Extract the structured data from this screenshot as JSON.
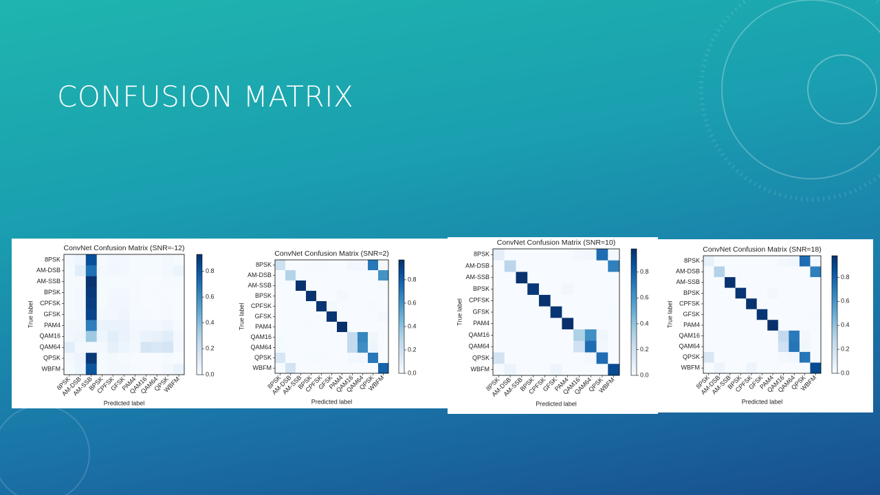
{
  "title": "CONFUSION MATRIX",
  "chart_data": [
    {
      "type": "heatmap",
      "title": "ConvNet Confusion Matrix (SNR=-12)",
      "xlabel": "Predicted label",
      "ylabel": "True label",
      "colormap": "Blues",
      "xcategories": [
        "8PSK",
        "AM-DSB",
        "AM-SSB",
        "BPSK",
        "CPFSK",
        "GFSK",
        "PAM4",
        "QAM16",
        "QAM64",
        "QPSK",
        "WBFM"
      ],
      "ycategories": [
        "8PSK",
        "AM-DSB",
        "AM-SSB",
        "BPSK",
        "CPFSK",
        "GFSK",
        "PAM4",
        "QAM16",
        "QAM64",
        "QPSK",
        "WBFM"
      ],
      "values": [
        [
          0.02,
          0.05,
          0.82,
          0.01,
          0.02,
          0.02,
          0.01,
          0.01,
          0.01,
          0.02,
          0.01
        ],
        [
          0.01,
          0.1,
          0.7,
          0.02,
          0.03,
          0.02,
          0.01,
          0.01,
          0.01,
          0.02,
          0.05
        ],
        [
          0.01,
          0.01,
          0.92,
          0.01,
          0.01,
          0.01,
          0.01,
          0,
          0,
          0.01,
          0.01
        ],
        [
          0.01,
          0.02,
          0.9,
          0.01,
          0.02,
          0.02,
          0.01,
          0,
          0.01,
          0,
          0
        ],
        [
          0.01,
          0.02,
          0.88,
          0.01,
          0.03,
          0.03,
          0.01,
          0,
          0,
          0.01,
          0
        ],
        [
          0.01,
          0.02,
          0.86,
          0.02,
          0.02,
          0.04,
          0.01,
          0.01,
          0,
          0.01,
          0
        ],
        [
          0.03,
          0.03,
          0.65,
          0.06,
          0.06,
          0.06,
          0.02,
          0.02,
          0.02,
          0.04,
          0.01
        ],
        [
          0.03,
          0.04,
          0.35,
          0.04,
          0.1,
          0.06,
          0.03,
          0.06,
          0.07,
          0.1,
          0.02
        ],
        [
          0.1,
          0.02,
          0.02,
          0.02,
          0.08,
          0.05,
          0.02,
          0.16,
          0.14,
          0.16,
          0.02
        ],
        [
          0.02,
          0.05,
          0.9,
          0.01,
          0.02,
          0.01,
          0,
          0,
          0,
          0.01,
          0
        ],
        [
          0.01,
          0.05,
          0.8,
          0.01,
          0.02,
          0.02,
          0.01,
          0,
          0,
          0.02,
          0.06
        ]
      ],
      "zlim": [
        0,
        0.93
      ],
      "zticks": [
        {
          "value": 0,
          "label": "0.0"
        },
        0.2,
        0.4,
        0.6,
        0.8
      ]
    },
    {
      "type": "heatmap",
      "title": "ConvNet Confusion Matrix (SNR=2)",
      "xlabel": "Predicted label",
      "ylabel": "True label",
      "colormap": "Blues",
      "xcategories": [
        "8PSK",
        "AM-DSB",
        "AM-SSB",
        "BPSK",
        "CPFSK",
        "GFSK",
        "PAM4",
        "QAM16",
        "QAM64",
        "QPSK",
        "WBFM"
      ],
      "ycategories": [
        "8PSK",
        "AM-DSB",
        "AM-SSB",
        "BPSK",
        "CPFSK",
        "GFSK",
        "PAM4",
        "QAM16",
        "QAM64",
        "QPSK",
        "WBFM"
      ],
      "values": [
        [
          0.2,
          0,
          0,
          0.01,
          0.01,
          0,
          0,
          0.03,
          0.02,
          0.7,
          0.02
        ],
        [
          0,
          0.3,
          0.01,
          0,
          0,
          0,
          0,
          0,
          0,
          0.01,
          0.6
        ],
        [
          0,
          0,
          0.96,
          0,
          0,
          0,
          0,
          0,
          0,
          0,
          0.01
        ],
        [
          0,
          0,
          0,
          0.96,
          0,
          0,
          0.02,
          0,
          0,
          0,
          0
        ],
        [
          0,
          0,
          0,
          0,
          0.95,
          0.02,
          0,
          0,
          0,
          0.01,
          0
        ],
        [
          0,
          0,
          0,
          0,
          0.01,
          0.95,
          0,
          0,
          0,
          0,
          0.02
        ],
        [
          0,
          0,
          0,
          0.01,
          0,
          0,
          0.97,
          0,
          0,
          0,
          0
        ],
        [
          0.01,
          0,
          0,
          0,
          0,
          0,
          0,
          0.25,
          0.65,
          0.04,
          0
        ],
        [
          0.01,
          0,
          0,
          0,
          0,
          0,
          0,
          0.25,
          0.62,
          0.05,
          0
        ],
        [
          0.15,
          0,
          0,
          0.01,
          0.01,
          0,
          0,
          0.02,
          0.03,
          0.7,
          0
        ],
        [
          0,
          0.18,
          0,
          0,
          0,
          0,
          0,
          0,
          0,
          0,
          0.78
        ]
      ],
      "zlim": [
        0,
        0.97
      ],
      "zticks": [
        {
          "value": 0,
          "label": "0.0"
        },
        0.2,
        0.4,
        0.6,
        0.8
      ]
    },
    {
      "type": "heatmap",
      "title": "ConvNet Confusion Matrix (SNR=10)",
      "xlabel": "Predicted label",
      "ylabel": "True label",
      "colormap": "Blues",
      "xcategories": [
        "8PSK",
        "AM-DSB",
        "AM-SSB",
        "BPSK",
        "CPFSK",
        "GFSK",
        "PAM4",
        "QAM16",
        "QAM64",
        "QPSK",
        "WBFM"
      ],
      "ycategories": [
        "8PSK",
        "AM-DSB",
        "AM-SSB",
        "BPSK",
        "CPFSK",
        "GFSK",
        "PAM4",
        "QAM16",
        "QAM64",
        "QPSK",
        "WBFM"
      ],
      "values": [
        [
          0.1,
          0,
          0,
          0,
          0,
          0,
          0,
          0.02,
          0.03,
          0.75,
          0.02
        ],
        [
          0,
          0.28,
          0,
          0,
          0,
          0,
          0,
          0,
          0,
          0,
          0.68
        ],
        [
          0,
          0,
          0.97,
          0,
          0,
          0,
          0,
          0,
          0,
          0,
          0
        ],
        [
          0,
          0,
          0,
          0.95,
          0,
          0,
          0.03,
          0,
          0,
          0,
          0
        ],
        [
          0,
          0,
          0,
          0,
          0.97,
          0,
          0,
          0,
          0,
          0,
          0
        ],
        [
          0,
          0,
          0,
          0,
          0,
          0.96,
          0,
          0,
          0,
          0,
          0.01
        ],
        [
          0,
          0,
          0,
          0,
          0,
          0,
          0.98,
          0,
          0,
          0,
          0
        ],
        [
          0,
          0,
          0,
          0,
          0,
          0,
          0,
          0.32,
          0.62,
          0.04,
          0
        ],
        [
          0,
          0,
          0,
          0,
          0,
          0,
          0,
          0.2,
          0.75,
          0.03,
          0
        ],
        [
          0.18,
          0,
          0,
          0,
          0,
          0,
          0,
          0,
          0.02,
          0.75,
          0
        ],
        [
          0,
          0.06,
          0,
          0,
          0,
          0.05,
          0,
          0,
          0,
          0,
          0.88
        ]
      ],
      "zlim": [
        0,
        0.98
      ],
      "zticks": [
        {
          "value": 0,
          "label": "0.0"
        },
        0.2,
        0.4,
        0.6,
        0.8
      ]
    },
    {
      "type": "heatmap",
      "title": "ConvNet Confusion Matrix (SNR=18)",
      "xlabel": "Predicted label",
      "ylabel": "True label",
      "colormap": "Blues",
      "xcategories": [
        "8PSK",
        "AM-DSB",
        "AM-SSB",
        "BPSK",
        "CPFSK",
        "GFSK",
        "PAM4",
        "QAM16",
        "QAM64",
        "QPSK",
        "WBFM"
      ],
      "ycategories": [
        "8PSK",
        "AM-DSB",
        "AM-SSB",
        "BPSK",
        "CPFSK",
        "GFSK",
        "PAM4",
        "QAM16",
        "QAM64",
        "QPSK",
        "WBFM"
      ],
      "values": [
        [
          0.08,
          0,
          0,
          0,
          0,
          0,
          0,
          0.02,
          0.03,
          0.75,
          0.02
        ],
        [
          0,
          0.3,
          0,
          0,
          0,
          0,
          0,
          0,
          0,
          0,
          0.68
        ],
        [
          0,
          0,
          0.97,
          0,
          0,
          0,
          0,
          0,
          0,
          0,
          0
        ],
        [
          0,
          0,
          0,
          0.96,
          0,
          0,
          0.02,
          0,
          0,
          0,
          0
        ],
        [
          0,
          0,
          0,
          0,
          0.97,
          0,
          0,
          0,
          0,
          0,
          0
        ],
        [
          0,
          0,
          0,
          0,
          0,
          0.96,
          0,
          0,
          0,
          0,
          0.01
        ],
        [
          0,
          0,
          0,
          0,
          0,
          0,
          0.98,
          0,
          0,
          0,
          0
        ],
        [
          0,
          0,
          0,
          0,
          0,
          0,
          0,
          0.25,
          0.7,
          0.02,
          0
        ],
        [
          0,
          0,
          0,
          0,
          0,
          0,
          0,
          0.2,
          0.72,
          0.04,
          0
        ],
        [
          0.15,
          0,
          0,
          0,
          0,
          0,
          0,
          0.02,
          0.03,
          0.72,
          0
        ],
        [
          0,
          0.05,
          0,
          0,
          0.05,
          0,
          0,
          0,
          0,
          0,
          0.88
        ]
      ],
      "zlim": [
        0,
        0.98
      ],
      "zticks": [
        {
          "value": 0,
          "label": "0.0"
        },
        0.2,
        0.4,
        0.6,
        0.8
      ]
    }
  ]
}
